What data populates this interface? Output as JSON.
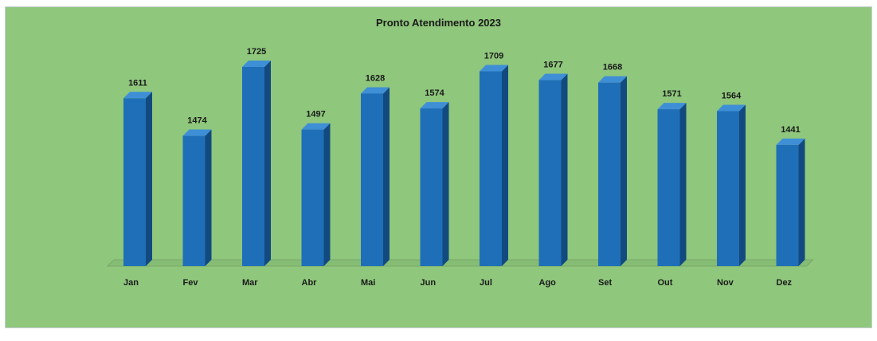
{
  "chart_data": {
    "type": "bar",
    "title": "Pronto Atendimento 2023",
    "categories": [
      "Jan",
      "Fev",
      "Mar",
      "Abr",
      "Mai",
      "Jun",
      "Jul",
      "Ago",
      "Set",
      "Out",
      "Nov",
      "Dez"
    ],
    "values": [
      1611,
      1474,
      1725,
      1497,
      1628,
      1574,
      1709,
      1677,
      1668,
      1571,
      1564,
      1441
    ],
    "xlabel": "",
    "ylabel": "",
    "grid": false,
    "legend": "none",
    "colors": {
      "background": "#8fc77c",
      "bar_front": "#1f6fb8",
      "bar_side": "#124a80",
      "bar_top": "#3f8fd6",
      "text": "#1a1a1a"
    }
  }
}
